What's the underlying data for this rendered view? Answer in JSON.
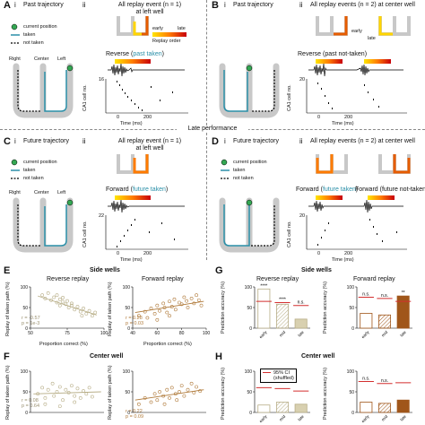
{
  "panels": {
    "A": {
      "letter": "A",
      "i": "i",
      "ii": "ii",
      "title_i": "Past trajectory",
      "title_ii": "All replay event (n = 1)\nat left well",
      "legend": [
        "current position",
        "taken",
        "not taken"
      ],
      "arms": [
        "Right",
        "Center",
        "Left"
      ],
      "replay_label": "Reverse (",
      "replay_label_teal": "past taken",
      "replay_close": ")",
      "early": "early",
      "late": "late",
      "order": "Replay order",
      "ymax": "16",
      "ylabel": "CA1 cell no.",
      "xlabel": "Time (ms)",
      "xticks": [
        "0",
        "200"
      ]
    },
    "B": {
      "letter": "B",
      "i": "i",
      "ii": "ii",
      "title_i": "Past trajectory",
      "title_ii": "All replay events (n = 2) at center well",
      "replay_label": "Reverse (past not-taken)",
      "ymax": "20",
      "ylabel": "CA1 cell no.",
      "xlabel": "Time (ms)",
      "xticks": [
        "0",
        "200"
      ],
      "early": "early",
      "late": "late"
    },
    "late_performance": "Late performance",
    "C": {
      "letter": "C",
      "i": "i",
      "ii": "ii",
      "title_i": "Future trajectory",
      "title_ii": "All replay event (n = 1)\nat left well",
      "legend": [
        "current position",
        "taken",
        "not taken"
      ],
      "arms": [
        "Right",
        "Center",
        "Left"
      ],
      "replay_label": "Forward (",
      "replay_label_teal": "future taken",
      "replay_close": ")",
      "ymax": "22",
      "ylabel": "CA1 cell no.",
      "xlabel": "Time (ms)",
      "xticks": [
        "0",
        "200"
      ]
    },
    "D": {
      "letter": "D",
      "i": "i",
      "ii": "ii",
      "title_i": "Future trajectory",
      "title_ii": "All replay events (n = 2) at center well",
      "legend": [
        "current position",
        "taken",
        "not taken"
      ],
      "replay_label_a": "Forward (",
      "replay_label_a_teal": "future taken",
      "replay_label_a_close": ")",
      "replay_label_b": "Forward (future not-taken)",
      "ymax": "20",
      "ylabel": "CA1 cell no.",
      "xlabel": "Time (ms)",
      "xticks": [
        "0",
        "200"
      ]
    },
    "E": {
      "letter": "E",
      "section": "Side wells",
      "left_title": "Reverse replay",
      "right_title": "Forward replay",
      "ylabel": "Replay of taken path (%)",
      "xlabel": "Proportion correct (%)",
      "left_stats": [
        "r = -0.57",
        "p = 1e-3"
      ],
      "right_stats": [
        "r = 0.28",
        "p = 0.03"
      ]
    },
    "F": {
      "letter": "F",
      "section": "Center well",
      "ylabel": "Replay of taken path (%)",
      "left_stats": [
        "r = 0.08",
        "p = 0.64"
      ],
      "right_stats": [
        "r = 0.22",
        "p = 0.09"
      ]
    },
    "G": {
      "letter": "G",
      "section": "Side wells",
      "left_title": "Reverse replay",
      "right_title": "Forward replay",
      "ylabel": "Prediction accuracy (%)",
      "xcats": [
        "early",
        "mid",
        "late"
      ],
      "left_sig": [
        "****",
        "****",
        "n.s."
      ],
      "right_sig": [
        "n.s.",
        "n.s.",
        "**"
      ]
    },
    "H": {
      "letter": "H",
      "section": "Center well",
      "ylabel": "Prediction accuracy (%)",
      "ci_legend": "95% CI\n(shuffled)",
      "right_sig": [
        "n.s.",
        "n.s."
      ]
    }
  },
  "chart_data": [
    {
      "type": "scatter",
      "panel": "E-left",
      "title": "Reverse replay",
      "xlabel": "Proportion correct (%)",
      "ylabel": "Replay of taken path (%)",
      "xlim": [
        50,
        100
      ],
      "ylim": [
        0,
        100
      ],
      "xticks": [
        50,
        75,
        100
      ],
      "yticks": [
        0,
        50,
        100
      ],
      "points": [
        [
          58,
          80
        ],
        [
          60,
          72
        ],
        [
          62,
          85
        ],
        [
          64,
          68
        ],
        [
          66,
          75
        ],
        [
          68,
          62
        ],
        [
          70,
          70
        ],
        [
          70,
          55
        ],
        [
          72,
          64
        ],
        [
          74,
          58
        ],
        [
          75,
          66
        ],
        [
          76,
          50
        ],
        [
          78,
          60
        ],
        [
          80,
          45
        ],
        [
          82,
          52
        ],
        [
          84,
          40
        ],
        [
          86,
          48
        ],
        [
          88,
          35
        ],
        [
          90,
          42
        ],
        [
          92,
          30
        ],
        [
          94,
          38
        ],
        [
          68,
          80
        ],
        [
          72,
          74
        ],
        [
          78,
          55
        ],
        [
          85,
          30
        ]
      ],
      "trend": [
        [
          55,
          78
        ],
        [
          95,
          32
        ]
      ],
      "color": "#b7ad86"
    },
    {
      "type": "scatter",
      "panel": "E-right",
      "title": "Forward replay",
      "xlabel": "Proportion correct (%)",
      "ylim": [
        0,
        100
      ],
      "xlim": [
        40,
        100
      ],
      "xticks": [
        40,
        60,
        80,
        100
      ],
      "yticks": [
        0,
        50,
        100
      ],
      "points": [
        [
          45,
          30
        ],
        [
          50,
          40
        ],
        [
          52,
          25
        ],
        [
          55,
          48
        ],
        [
          58,
          35
        ],
        [
          60,
          55
        ],
        [
          62,
          42
        ],
        [
          65,
          60
        ],
        [
          66,
          50
        ],
        [
          68,
          38
        ],
        [
          70,
          65
        ],
        [
          72,
          52
        ],
        [
          74,
          70
        ],
        [
          75,
          45
        ],
        [
          78,
          62
        ],
        [
          80,
          58
        ],
        [
          82,
          75
        ],
        [
          84,
          66
        ],
        [
          85,
          50
        ],
        [
          88,
          72
        ],
        [
          90,
          60
        ],
        [
          92,
          80
        ],
        [
          94,
          68
        ],
        [
          96,
          55
        ],
        [
          70,
          30
        ],
        [
          60,
          20
        ]
      ],
      "trend": [
        [
          42,
          38
        ],
        [
          98,
          65
        ]
      ],
      "color": "#b07a3a"
    },
    {
      "type": "scatter",
      "panel": "F-left",
      "ylabel": "Replay of taken path (%)",
      "ylim": [
        0,
        100
      ],
      "xlim": [
        50,
        100
      ],
      "yticks": [
        0,
        50,
        100
      ],
      "points": [
        [
          55,
          45
        ],
        [
          58,
          60
        ],
        [
          60,
          35
        ],
        [
          62,
          55
        ],
        [
          65,
          70
        ],
        [
          66,
          40
        ],
        [
          68,
          50
        ],
        [
          70,
          62
        ],
        [
          72,
          30
        ],
        [
          74,
          55
        ],
        [
          76,
          48
        ],
        [
          78,
          65
        ],
        [
          80,
          40
        ],
        [
          82,
          58
        ],
        [
          84,
          35
        ],
        [
          86,
          52
        ],
        [
          88,
          45
        ],
        [
          90,
          60
        ],
        [
          92,
          38
        ],
        [
          60,
          20
        ],
        [
          70,
          15
        ],
        [
          80,
          25
        ]
      ],
      "trend": [
        [
          52,
          45
        ],
        [
          98,
          50
        ]
      ],
      "color": "#b7ad86"
    },
    {
      "type": "scatter",
      "panel": "F-right",
      "ylim": [
        0,
        100
      ],
      "xlim": [
        40,
        100
      ],
      "yticks": [
        0,
        50,
        100
      ],
      "points": [
        [
          45,
          20
        ],
        [
          50,
          35
        ],
        [
          55,
          25
        ],
        [
          58,
          45
        ],
        [
          60,
          30
        ],
        [
          62,
          50
        ],
        [
          65,
          40
        ],
        [
          68,
          55
        ],
        [
          70,
          35
        ],
        [
          72,
          60
        ],
        [
          75,
          45
        ],
        [
          78,
          50
        ],
        [
          80,
          65
        ],
        [
          82,
          40
        ],
        [
          85,
          55
        ],
        [
          88,
          70
        ],
        [
          90,
          48
        ],
        [
          92,
          62
        ],
        [
          95,
          52
        ],
        [
          66,
          20
        ],
        [
          76,
          30
        ]
      ],
      "trend": [
        [
          42,
          30
        ],
        [
          98,
          55
        ]
      ],
      "color": "#b07a3a"
    },
    {
      "type": "bar",
      "panel": "G-left",
      "categories": [
        "early",
        "mid",
        "late"
      ],
      "values": [
        95,
        58,
        22
      ],
      "ci": [
        65,
        62,
        55
      ],
      "ylim": [
        0,
        100
      ],
      "ylabel": "Prediction accuracy (%)",
      "yticks": [
        0,
        50,
        100
      ],
      "significance": [
        "****",
        "****",
        "n.s."
      ]
    },
    {
      "type": "bar",
      "panel": "G-right",
      "categories": [
        "early",
        "mid",
        "late"
      ],
      "values": [
        36,
        32,
        78
      ],
      "ci": [
        75,
        72,
        65
      ],
      "ylim": [
        0,
        100
      ],
      "yticks": [
        0,
        50,
        100
      ],
      "significance": [
        "n.s.",
        "n.s.",
        "**"
      ]
    },
    {
      "type": "bar",
      "panel": "H-left",
      "categories": [
        "early",
        "mid",
        "late"
      ],
      "values": [
        18,
        25,
        20
      ],
      "ci": [
        60,
        58,
        52
      ],
      "ylim": [
        0,
        100
      ],
      "ylabel": "Prediction accuracy (%)",
      "yticks": [
        0,
        50,
        100
      ]
    },
    {
      "type": "bar",
      "panel": "H-right",
      "categories": [
        "early",
        "mid",
        "late"
      ],
      "values": [
        25,
        22,
        30
      ],
      "ci": [
        75,
        70,
        72
      ],
      "ylim": [
        0,
        100
      ],
      "yticks": [
        0,
        50,
        100
      ],
      "significance": [
        "n.s.",
        "n.s."
      ]
    }
  ]
}
